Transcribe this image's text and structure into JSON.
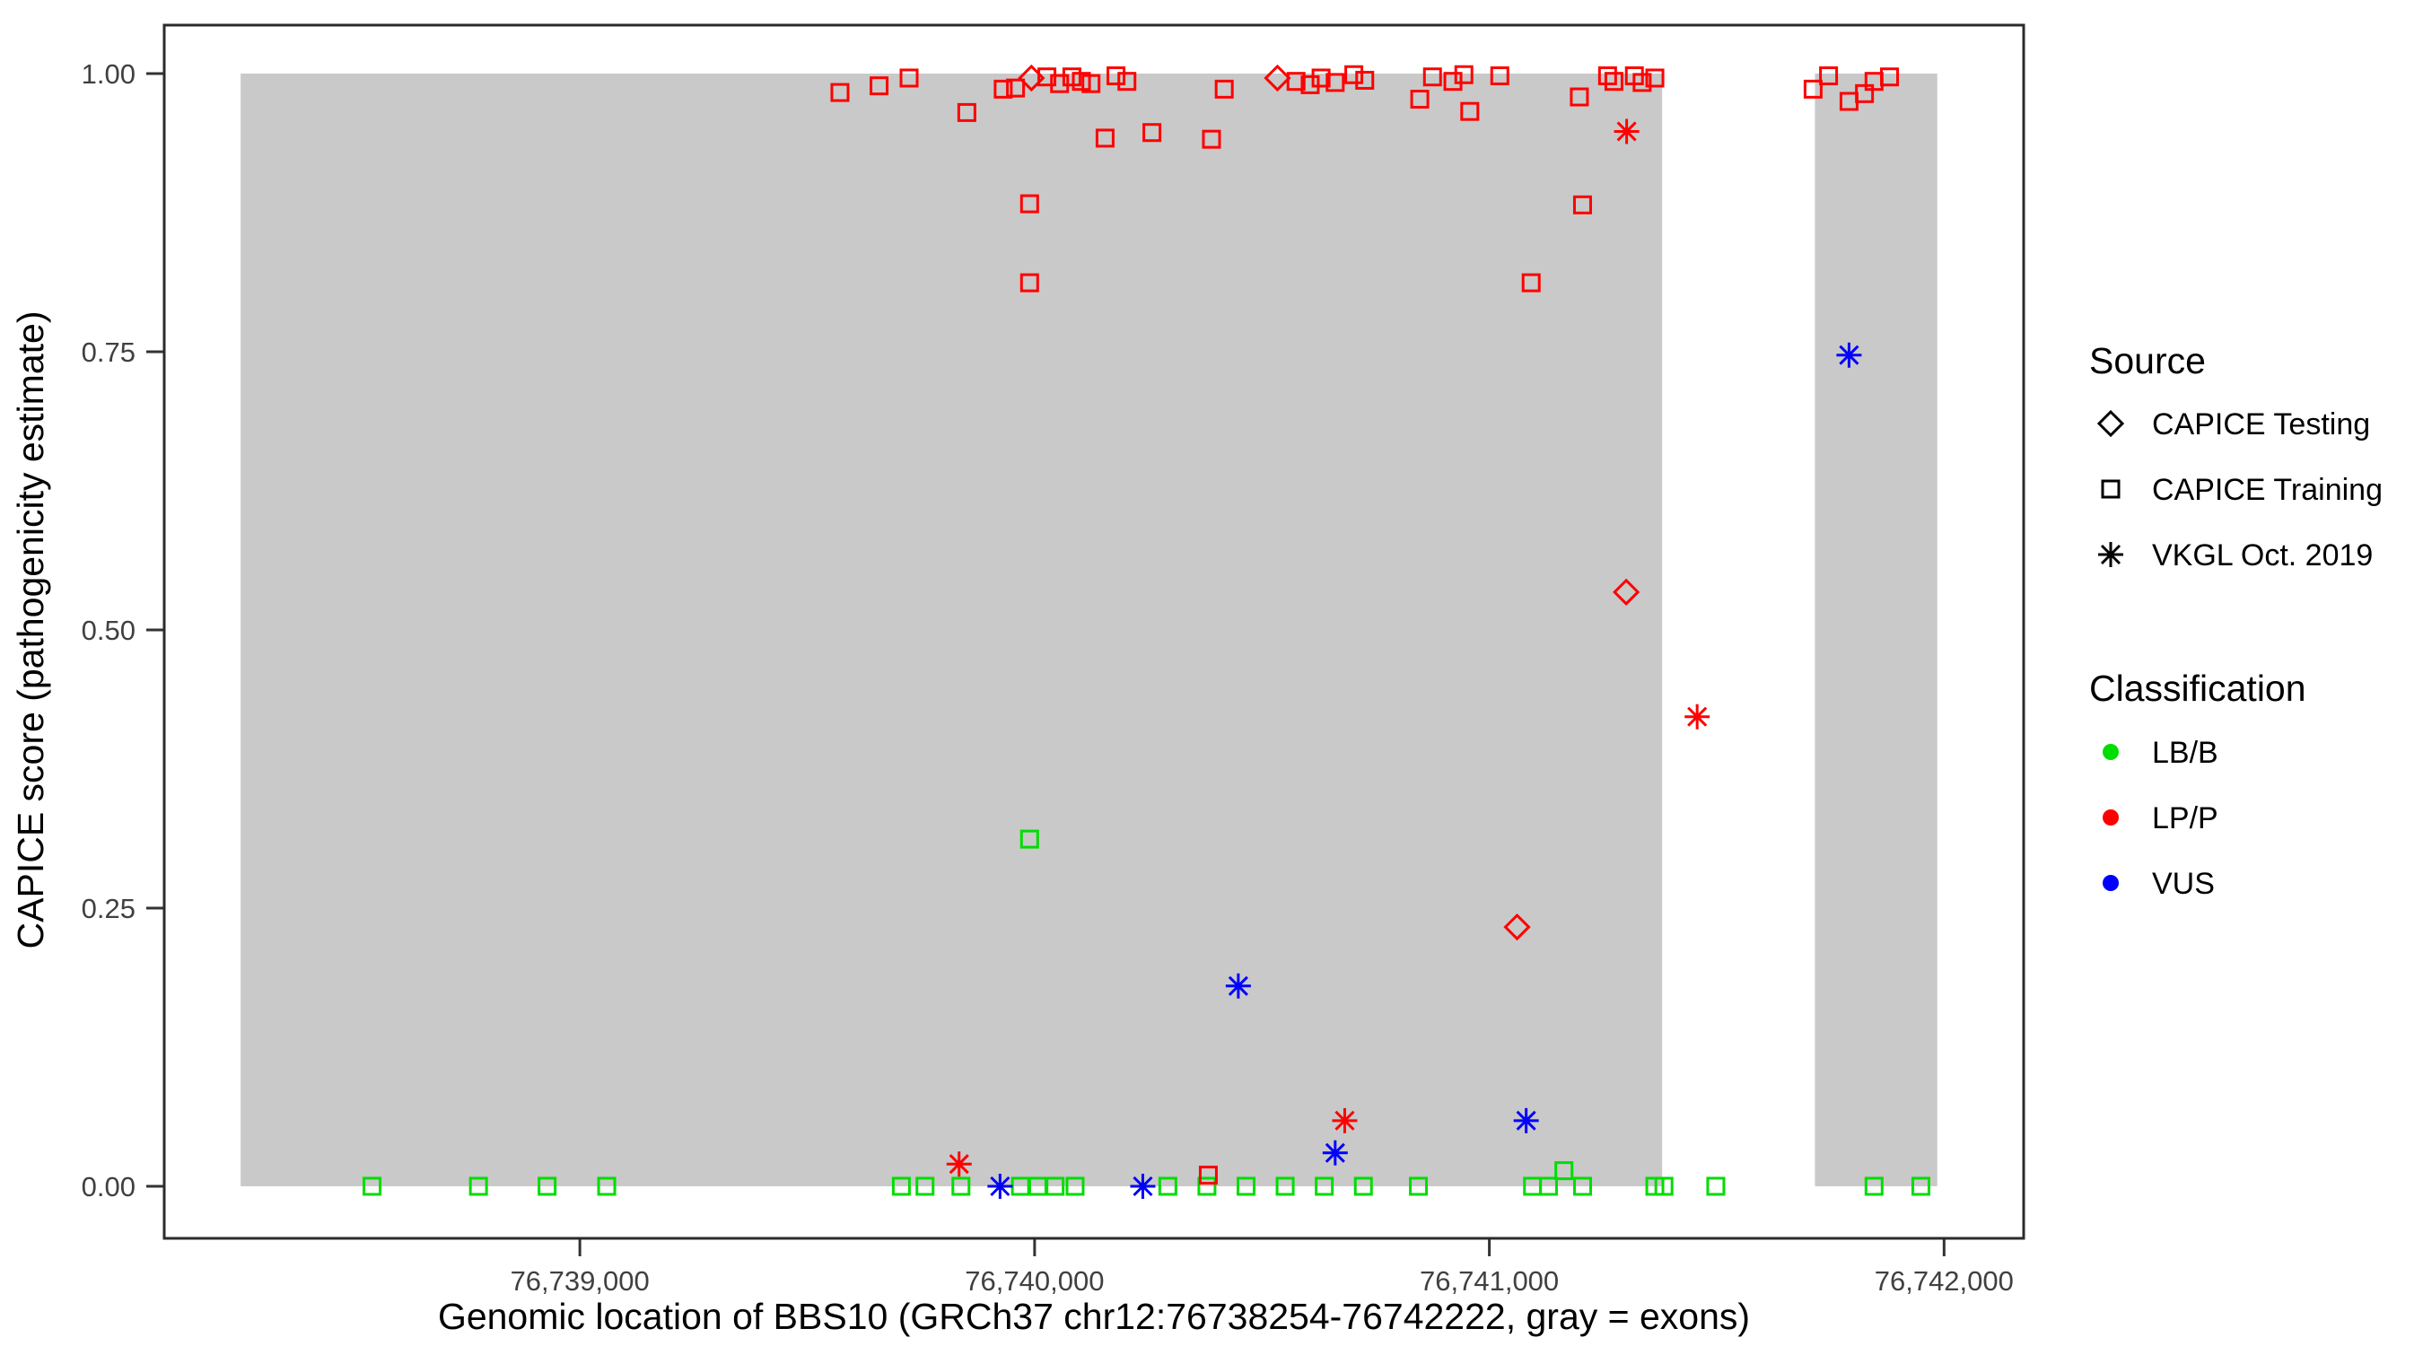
{
  "chart_data": {
    "type": "scatter",
    "title": "",
    "xlabel": "Genomic location of BBS10 (GRCh37 chr12:76738254-76742222, gray = exons)",
    "ylabel": "CAPICE score (pathogenicity estimate)",
    "xlim": [
      76738086,
      76742175
    ],
    "ylim": [
      0,
      1
    ],
    "grid": "off",
    "x_ticks": [
      {
        "value": 76739000,
        "label": "76,739,000"
      },
      {
        "value": 76740000,
        "label": "76,740,000"
      },
      {
        "value": 76741000,
        "label": "76,741,000"
      },
      {
        "value": 76742000,
        "label": "76,742,000"
      }
    ],
    "y_ticks": [
      {
        "value": 0.0,
        "label": "0.00"
      },
      {
        "value": 0.25,
        "label": "0.25"
      },
      {
        "value": 0.5,
        "label": "0.50"
      },
      {
        "value": 0.75,
        "label": "0.75"
      },
      {
        "value": 1.0,
        "label": "1.00"
      }
    ],
    "exon_color": "#C9C9C9",
    "exons_gray": [
      [
        76738254,
        76741380
      ],
      [
        76741716,
        76741985
      ]
    ],
    "legend": {
      "position": "right",
      "source": {
        "title": "Source",
        "items": [
          {
            "label": "CAPICE Testing",
            "marker": "diamond"
          },
          {
            "label": "CAPICE Training",
            "marker": "square"
          },
          {
            "label": "VKGL Oct. 2019",
            "marker": "asterisk"
          }
        ]
      },
      "classification": {
        "title": "Classification",
        "items": [
          {
            "label": "LB/B",
            "color": "#00DD00"
          },
          {
            "label": "LP/P",
            "color": "#FF0000"
          },
          {
            "label": "VUS",
            "color": "#0000FF"
          }
        ]
      }
    },
    "series": [
      {
        "name": "CAPICE Training / LB/B",
        "source": "CAPICE Training",
        "classification": "LB/B",
        "marker": "square",
        "color": "#00DD00",
        "points": [
          [
            76738543,
            0.0
          ],
          [
            76738777,
            0.0
          ],
          [
            76738928,
            0.0
          ],
          [
            76739059,
            0.0
          ],
          [
            76739707,
            0.0
          ],
          [
            76739759,
            0.0
          ],
          [
            76739838,
            0.0
          ],
          [
            76739969,
            0.0
          ],
          [
            76739989,
            0.312
          ],
          [
            76740007,
            0.0
          ],
          [
            76740045,
            0.0
          ],
          [
            76740089,
            0.0
          ],
          [
            76740293,
            0.0
          ],
          [
            76740379,
            0.0
          ],
          [
            76740465,
            0.0
          ],
          [
            76740551,
            0.0
          ],
          [
            76740637,
            0.0
          ],
          [
            76740723,
            0.0
          ],
          [
            76740844,
            0.0
          ],
          [
            76741095,
            0.0
          ],
          [
            76741130,
            0.0
          ],
          [
            76741164,
            0.014
          ],
          [
            76741205,
            0.0
          ],
          [
            76741364,
            0.0
          ],
          [
            76741384,
            0.0
          ],
          [
            76741498,
            0.0
          ],
          [
            76741846,
            0.0
          ],
          [
            76741949,
            0.0
          ]
        ]
      },
      {
        "name": "VKGL Oct. 2019 / VUS",
        "source": "VKGL Oct. 2019",
        "classification": "VUS",
        "marker": "asterisk",
        "color": "#0000FF",
        "points": [
          [
            76739924,
            0.0
          ],
          [
            76740238,
            0.0
          ],
          [
            76740448,
            0.18
          ],
          [
            76740661,
            0.03
          ],
          [
            76741081,
            0.059
          ],
          [
            76741791,
            0.747
          ]
        ]
      },
      {
        "name": "VKGL Oct. 2019 / LP/P",
        "source": "VKGL Oct. 2019",
        "classification": "LP/P",
        "marker": "asterisk",
        "color": "#FF0000",
        "points": [
          [
            76739834,
            0.02
          ],
          [
            76740682,
            0.059
          ],
          [
            76741302,
            0.948
          ],
          [
            76741457,
            0.422
          ]
        ]
      },
      {
        "name": "CAPICE Training / LP/P",
        "source": "CAPICE Training",
        "classification": "LP/P",
        "marker": "square",
        "color": "#FF0000",
        "points": [
          [
            76739572,
            0.983
          ],
          [
            76739658,
            0.989
          ],
          [
            76739724,
            0.996
          ],
          [
            76739851,
            0.965
          ],
          [
            76739931,
            0.986
          ],
          [
            76739958,
            0.987
          ],
          [
            76739989,
            0.883
          ],
          [
            76739989,
            0.812
          ],
          [
            76740027,
            0.997
          ],
          [
            76740055,
            0.991
          ],
          [
            76740082,
            0.997
          ],
          [
            76740103,
            0.993
          ],
          [
            76740124,
            0.991
          ],
          [
            76740155,
            0.942
          ],
          [
            76740179,
            0.998
          ],
          [
            76740203,
            0.993
          ],
          [
            76740258,
            0.947
          ],
          [
            76740382,
            0.01
          ],
          [
            76740389,
            0.941
          ],
          [
            76740417,
            0.986
          ],
          [
            76740575,
            0.993
          ],
          [
            76740606,
            0.99
          ],
          [
            76740630,
            0.996
          ],
          [
            76740661,
            0.992
          ],
          [
            76740702,
            0.999
          ],
          [
            76740726,
            0.994
          ],
          [
            76740847,
            0.977
          ],
          [
            76740875,
            0.997
          ],
          [
            76740920,
            0.993
          ],
          [
            76740944,
            0.999
          ],
          [
            76740957,
            0.966
          ],
          [
            76741023,
            0.998
          ],
          [
            76741092,
            0.812
          ],
          [
            76741198,
            0.979
          ],
          [
            76741205,
            0.882
          ],
          [
            76741260,
            0.998
          ],
          [
            76741274,
            0.993
          ],
          [
            76741319,
            0.998
          ],
          [
            76741336,
            0.992
          ],
          [
            76741364,
            0.996
          ],
          [
            76741712,
            0.986
          ],
          [
            76741746,
            0.998
          ],
          [
            76741791,
            0.975
          ],
          [
            76741825,
            0.982
          ],
          [
            76741846,
            0.993
          ],
          [
            76741880,
            0.997
          ]
        ]
      },
      {
        "name": "CAPICE Testing / LP/P",
        "source": "CAPICE Testing",
        "classification": "LP/P",
        "marker": "diamond",
        "color": "#FF0000",
        "points": [
          [
            76739993,
            0.996
          ],
          [
            76740534,
            0.996
          ],
          [
            76741061,
            0.233
          ],
          [
            76741301,
            0.534
          ]
        ]
      }
    ]
  }
}
